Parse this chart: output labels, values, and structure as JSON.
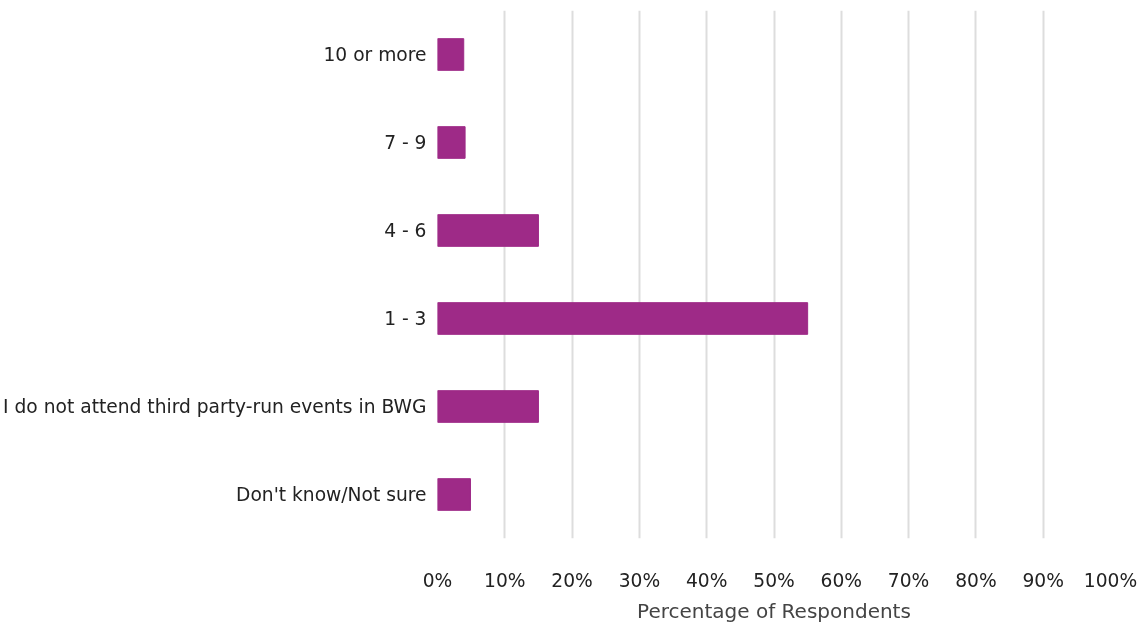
{
  "chart_data": {
    "type": "bar",
    "orientation": "horizontal",
    "xlabel": "Percentage of Respondents",
    "categories": [
      "10 or more",
      "7 - 9",
      "4 - 6",
      "1 - 3",
      "I do not attend third party-run events in BWG",
      "Don't know/Not sure"
    ],
    "values": [
      3.9,
      4.1,
      15,
      55,
      15,
      4.9
    ],
    "color": "#9e2a87",
    "xlim": [
      0,
      100
    ],
    "xticks": [
      {
        "value": 0,
        "label": "0%"
      },
      {
        "value": 10,
        "label": "10%"
      },
      {
        "value": 20,
        "label": "20%"
      },
      {
        "value": 30,
        "label": "30%"
      },
      {
        "value": 40,
        "label": "40%"
      },
      {
        "value": 50,
        "label": "50%"
      },
      {
        "value": 60,
        "label": "60%"
      },
      {
        "value": 70,
        "label": "70%"
      },
      {
        "value": 80,
        "label": "80%"
      },
      {
        "value": 90,
        "label": "90%"
      },
      {
        "value": 100,
        "label": "100%"
      }
    ],
    "grid": "x"
  }
}
